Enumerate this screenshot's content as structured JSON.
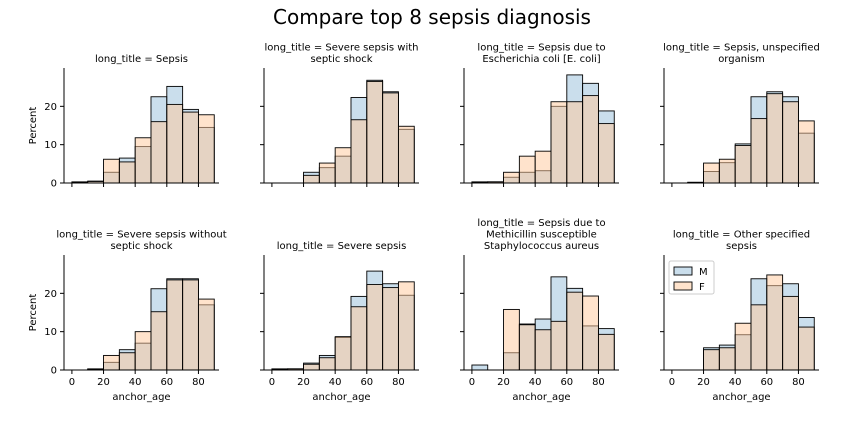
{
  "figure": {
    "title": "Compare top 8 sepsis diagnosis",
    "xlabel": "anchor_age",
    "ylabel": "Percent",
    "legend": {
      "placement": "inside-last-panel top-left",
      "entries": [
        {
          "name": "M",
          "color": "#a6c8e0"
        },
        {
          "name": "F",
          "color": "#ffc899"
        }
      ]
    }
  },
  "chart_data": {
    "type": "bar",
    "subtype": "histogram-facets",
    "layout": "2 rows x 4 columns, shared axes",
    "x_ticks": [
      0,
      20,
      40,
      60,
      80
    ],
    "y_ticks": [
      0,
      10,
      20
    ],
    "xlim": [
      -5,
      93
    ],
    "ylim": [
      0,
      30
    ],
    "bin_edges": [
      0,
      10,
      20,
      30,
      40,
      50,
      60,
      70,
      80,
      90
    ],
    "series_names": [
      "M",
      "F"
    ],
    "panels": [
      {
        "title": "long_title = Sepsis",
        "M": [
          0.3,
          0.5,
          2.8,
          6.5,
          9.5,
          22.5,
          25.2,
          19.2,
          14.5
        ],
        "F": [
          0.2,
          0.4,
          6.2,
          5.5,
          11.8,
          16.0,
          20.5,
          18.5,
          17.8
        ]
      },
      {
        "title": "long_title = Severe sepsis with septic shock",
        "M": [
          0,
          0,
          2.8,
          4.0,
          7.0,
          22.3,
          26.8,
          23.8,
          14.0
        ],
        "F": [
          0,
          0,
          2.0,
          5.2,
          9.2,
          16.5,
          26.5,
          23.5,
          14.8
        ]
      },
      {
        "title": "long_title = Sepsis due to Escherichia coli [E. coli]",
        "M": [
          0.3,
          0.3,
          1.5,
          2.8,
          3.2,
          20.0,
          28.2,
          26.0,
          18.8
        ],
        "F": [
          0.2,
          0.3,
          2.8,
          7.0,
          8.3,
          21.2,
          21.2,
          22.8,
          15.5
        ]
      },
      {
        "title": "long_title = Sepsis, unspecified organism",
        "M": [
          0,
          0.2,
          3.0,
          5.3,
          10.2,
          22.5,
          23.8,
          22.5,
          13.0
        ],
        "F": [
          0,
          0.1,
          5.2,
          6.2,
          9.8,
          16.8,
          23.3,
          21.2,
          16.2
        ]
      },
      {
        "title": "long_title = Severe sepsis without septic shock",
        "M": [
          0,
          0.3,
          2.0,
          5.3,
          7.0,
          21.2,
          23.8,
          23.8,
          17.0
        ],
        "F": [
          0,
          0.2,
          3.8,
          4.5,
          10.0,
          15.2,
          23.5,
          23.5,
          18.5
        ]
      },
      {
        "title": "long_title = Severe sepsis",
        "M": [
          0.3,
          0.3,
          1.8,
          3.8,
          8.5,
          19.2,
          25.8,
          22.5,
          19.5
        ],
        "F": [
          0.2,
          0.3,
          1.5,
          3.2,
          8.7,
          16.5,
          22.3,
          21.5,
          23.0
        ]
      },
      {
        "title": "long_title = Sepsis due to Methicillin susceptible Staphylococcus aureus",
        "M": [
          1.3,
          0,
          4.5,
          12.0,
          13.3,
          24.3,
          21.3,
          11.5,
          10.8
        ],
        "F": [
          0,
          0,
          15.8,
          11.8,
          10.5,
          12.7,
          20.3,
          19.3,
          9.3
        ]
      },
      {
        "title": "long_title = Other specified sepsis",
        "M": [
          0,
          0,
          5.8,
          6.5,
          9.2,
          23.8,
          22.0,
          22.5,
          13.7
        ],
        "F": [
          0,
          0,
          5.3,
          5.8,
          12.2,
          17.0,
          24.8,
          19.2,
          11.2
        ]
      }
    ]
  }
}
